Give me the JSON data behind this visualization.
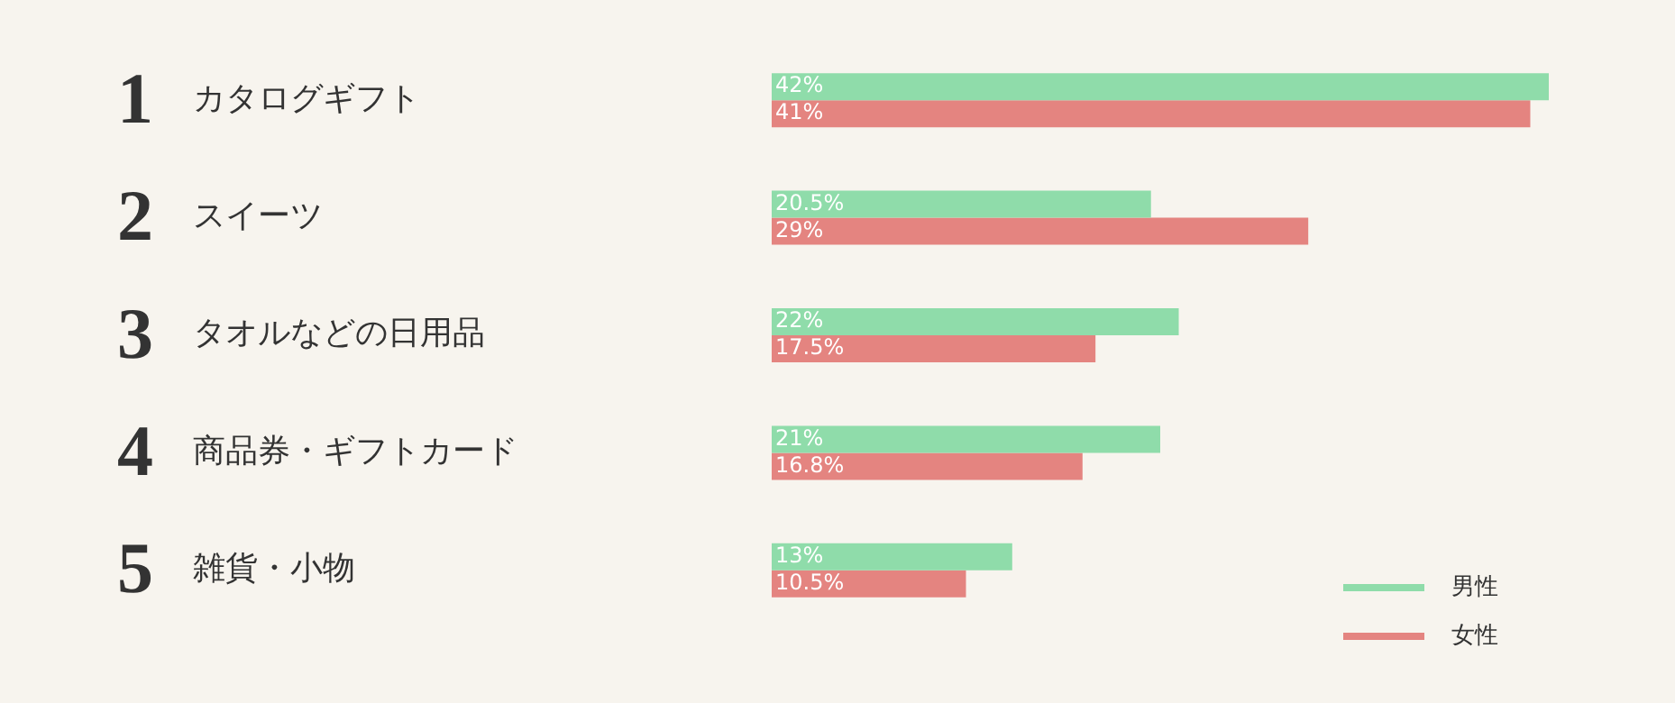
{
  "chart_data": {
    "type": "bar",
    "orientation": "horizontal",
    "categories": [
      "カタログギフト",
      "スイーツ",
      "タオルなどの日用品",
      "商品券・ギフトカード",
      "雑貨・小物"
    ],
    "series": [
      {
        "name": "男性",
        "color": "#8fdcaa",
        "values": [
          42,
          20.5,
          22,
          21,
          13
        ],
        "value_labels": [
          "42%",
          "20.5%",
          "22%",
          "21%",
          "13%"
        ]
      },
      {
        "name": "女性",
        "color": "#e48480",
        "values": [
          41,
          29,
          17.5,
          16.8,
          10.5
        ],
        "value_labels": [
          "41%",
          "29%",
          "17.5%",
          "16.8%",
          "10.5%"
        ]
      }
    ],
    "legend": "bottom right",
    "annotations": [
      "1",
      "2",
      "3",
      "4",
      "5"
    ]
  }
}
